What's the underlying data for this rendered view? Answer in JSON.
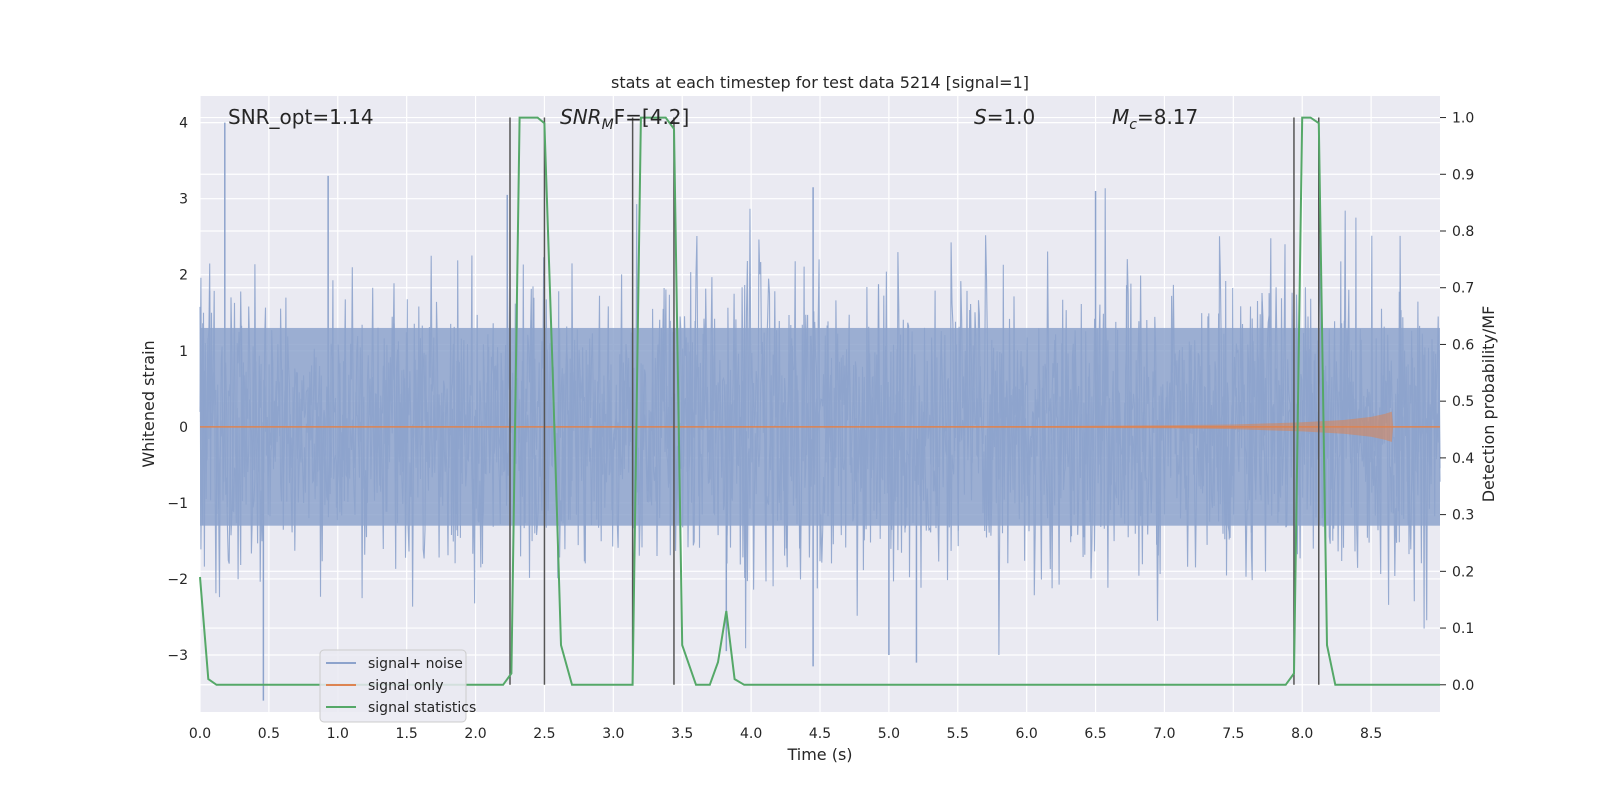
{
  "chart_data": {
    "type": "line",
    "title": "stats at each timestep for test data 5214 [signal=1]",
    "xlabel": "Time (s)",
    "ylabel": "Whitened strain",
    "y2label": "Detection probability/MF",
    "xlim": [
      0.0,
      9.0
    ],
    "ylim": [
      -3.75,
      4.35
    ],
    "y2lim": [
      -0.048,
      1.038
    ],
    "xticks": [
      "0.0",
      "0.5",
      "1.0",
      "1.5",
      "2.0",
      "2.5",
      "3.0",
      "3.5",
      "4.0",
      "4.5",
      "5.0",
      "5.5",
      "6.0",
      "6.5",
      "7.0",
      "7.5",
      "8.0",
      "8.5"
    ],
    "yticks": [
      "4",
      "3",
      "2",
      "1",
      "0",
      "−1",
      "−2",
      "−3"
    ],
    "y2ticks": [
      "0.0",
      "0.1",
      "0.2",
      "0.3",
      "0.4",
      "0.5",
      "0.6",
      "0.7",
      "0.8",
      "0.9",
      "1.0"
    ],
    "grid": true,
    "legend_position": "bottom-left",
    "annotations": {
      "snr_opt": "SNR_opt=1.14",
      "snr_mf_main": "SNR",
      "snr_mf_sub": "M",
      "snr_mf_rest": "F=[4.2]",
      "s_main": "S",
      "s_rest": "=1.0",
      "mc_main": "M",
      "mc_sub": "c",
      "mc_rest": "=8.17"
    },
    "series": [
      {
        "name": "signal+ noise",
        "color": "#8da3cc",
        "kind": "whitened noise, approx. Gaussian, sigma ~1",
        "notable_spikes": [
          [
            0.18,
            4.0
          ],
          [
            0.46,
            -3.6
          ],
          [
            0.93,
            3.3
          ],
          [
            2.23,
            3.05
          ],
          [
            4.45,
            3.15
          ],
          [
            4.45,
            -3.15
          ],
          [
            5.2,
            -3.1
          ],
          [
            6.5,
            3.1
          ],
          [
            3.82,
            -2.95
          ],
          [
            5.0,
            -3.0
          ]
        ]
      },
      {
        "name": "signal only",
        "color": "#dd8452",
        "kind": "chirp, amplitude growing to ~0.2 near t=8.65",
        "x": [
          0.0,
          6.0,
          7.0,
          7.5,
          8.0,
          8.3,
          8.5,
          8.6,
          8.65,
          8.66,
          9.0
        ],
        "amp": [
          0.0,
          0.01,
          0.02,
          0.03,
          0.06,
          0.09,
          0.13,
          0.17,
          0.2,
          0.0,
          0.0
        ]
      },
      {
        "name": "signal statistics",
        "color": "#55a868",
        "x": [
          0.0,
          0.06,
          0.12,
          2.2,
          2.26,
          2.32,
          2.45,
          2.5,
          2.56,
          2.62,
          2.7,
          3.1,
          3.14,
          3.2,
          3.38,
          3.44,
          3.5,
          3.6,
          3.7,
          3.76,
          3.82,
          3.88,
          3.95,
          7.88,
          7.94,
          8.0,
          8.06,
          8.12,
          8.18,
          8.24,
          9.0
        ],
        "y": [
          0.19,
          0.01,
          0.0,
          0.0,
          0.02,
          1.0,
          1.0,
          0.99,
          0.55,
          0.07,
          0.0,
          0.0,
          0.0,
          1.0,
          1.0,
          0.98,
          0.07,
          0.0,
          0.0,
          0.04,
          0.13,
          0.01,
          0.0,
          0.0,
          0.02,
          1.0,
          1.0,
          0.99,
          0.07,
          0.0,
          0.0
        ]
      }
    ],
    "vertical_markers": [
      2.25,
      2.5,
      3.14,
      3.44,
      7.94,
      8.12
    ]
  }
}
